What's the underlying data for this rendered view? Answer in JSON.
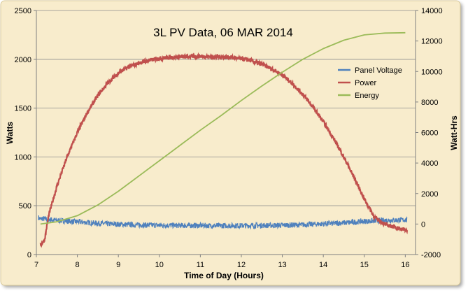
{
  "chart_data": {
    "type": "line",
    "title": "3L PV Data, 06 MAR 2014",
    "xlabel": "Time of Day (Hours)",
    "ylabel": "Watts",
    "y2label": "Watt-Hrs",
    "xlim": [
      7,
      16.25
    ],
    "ylim": [
      0,
      2500
    ],
    "y2lim": [
      -2000,
      14000
    ],
    "xticks": [
      "7",
      "8",
      "9",
      "10",
      "11",
      "12",
      "13",
      "14",
      "15",
      "16"
    ],
    "yticks": [
      "0",
      "500",
      "1000",
      "1500",
      "2000",
      "2500"
    ],
    "y2ticks": [
      "-2000",
      "0",
      "2000",
      "4000",
      "6000",
      "8000",
      "10000",
      "12000",
      "14000"
    ],
    "grid": "horizontal major gridlines",
    "legend_position": "right",
    "background": "#f8eccc",
    "series": [
      {
        "name": "Panel Voltage",
        "axis": "left",
        "color": "#4f81bd",
        "x": [
          7.05,
          7.1,
          7.15,
          7.2,
          7.3,
          7.5,
          8,
          8.5,
          9,
          9.5,
          10,
          10.5,
          11,
          11.5,
          12,
          12.5,
          13,
          13.5,
          14,
          14.5,
          15,
          15.5,
          16,
          16.05
        ],
        "y": [
          380,
          360,
          370,
          365,
          360,
          350,
          335,
          320,
          310,
          303,
          300,
          298,
          297,
          296,
          296,
          298,
          300,
          305,
          315,
          325,
          340,
          350,
          355,
          355
        ]
      },
      {
        "name": "Power",
        "axis": "left",
        "color": "#c0504d",
        "x": [
          7.1,
          7.2,
          7.3,
          7.5,
          7.75,
          8,
          8.25,
          8.5,
          8.75,
          9,
          9.25,
          9.5,
          9.75,
          10,
          10.25,
          10.5,
          10.75,
          11,
          11.25,
          11.5,
          11.75,
          12,
          12.25,
          12.5,
          12.75,
          13,
          13.25,
          13.5,
          13.75,
          14,
          14.25,
          14.5,
          14.75,
          15,
          15.25,
          15.5,
          15.75,
          16,
          16.05
        ],
        "y": [
          100,
          150,
          400,
          700,
          1000,
          1250,
          1460,
          1630,
          1760,
          1860,
          1920,
          1960,
          1990,
          2010,
          2020,
          2025,
          2028,
          2030,
          2028,
          2025,
          2020,
          2005,
          1985,
          1950,
          1900,
          1840,
          1750,
          1640,
          1510,
          1360,
          1190,
          1000,
          790,
          570,
          380,
          310,
          280,
          250,
          240
        ]
      },
      {
        "name": "Energy",
        "axis": "right",
        "color": "#9bbb59",
        "x": [
          7.1,
          7.5,
          8,
          8.5,
          9,
          9.5,
          10,
          10.5,
          11,
          11.5,
          12,
          12.5,
          13,
          13.5,
          14,
          14.5,
          15,
          15.5,
          16
        ],
        "y": [
          0,
          150,
          550,
          1250,
          2150,
          3150,
          4150,
          5150,
          6150,
          7100,
          8100,
          9050,
          9950,
          10800,
          11500,
          12050,
          12400,
          12520,
          12540
        ]
      }
    ]
  }
}
